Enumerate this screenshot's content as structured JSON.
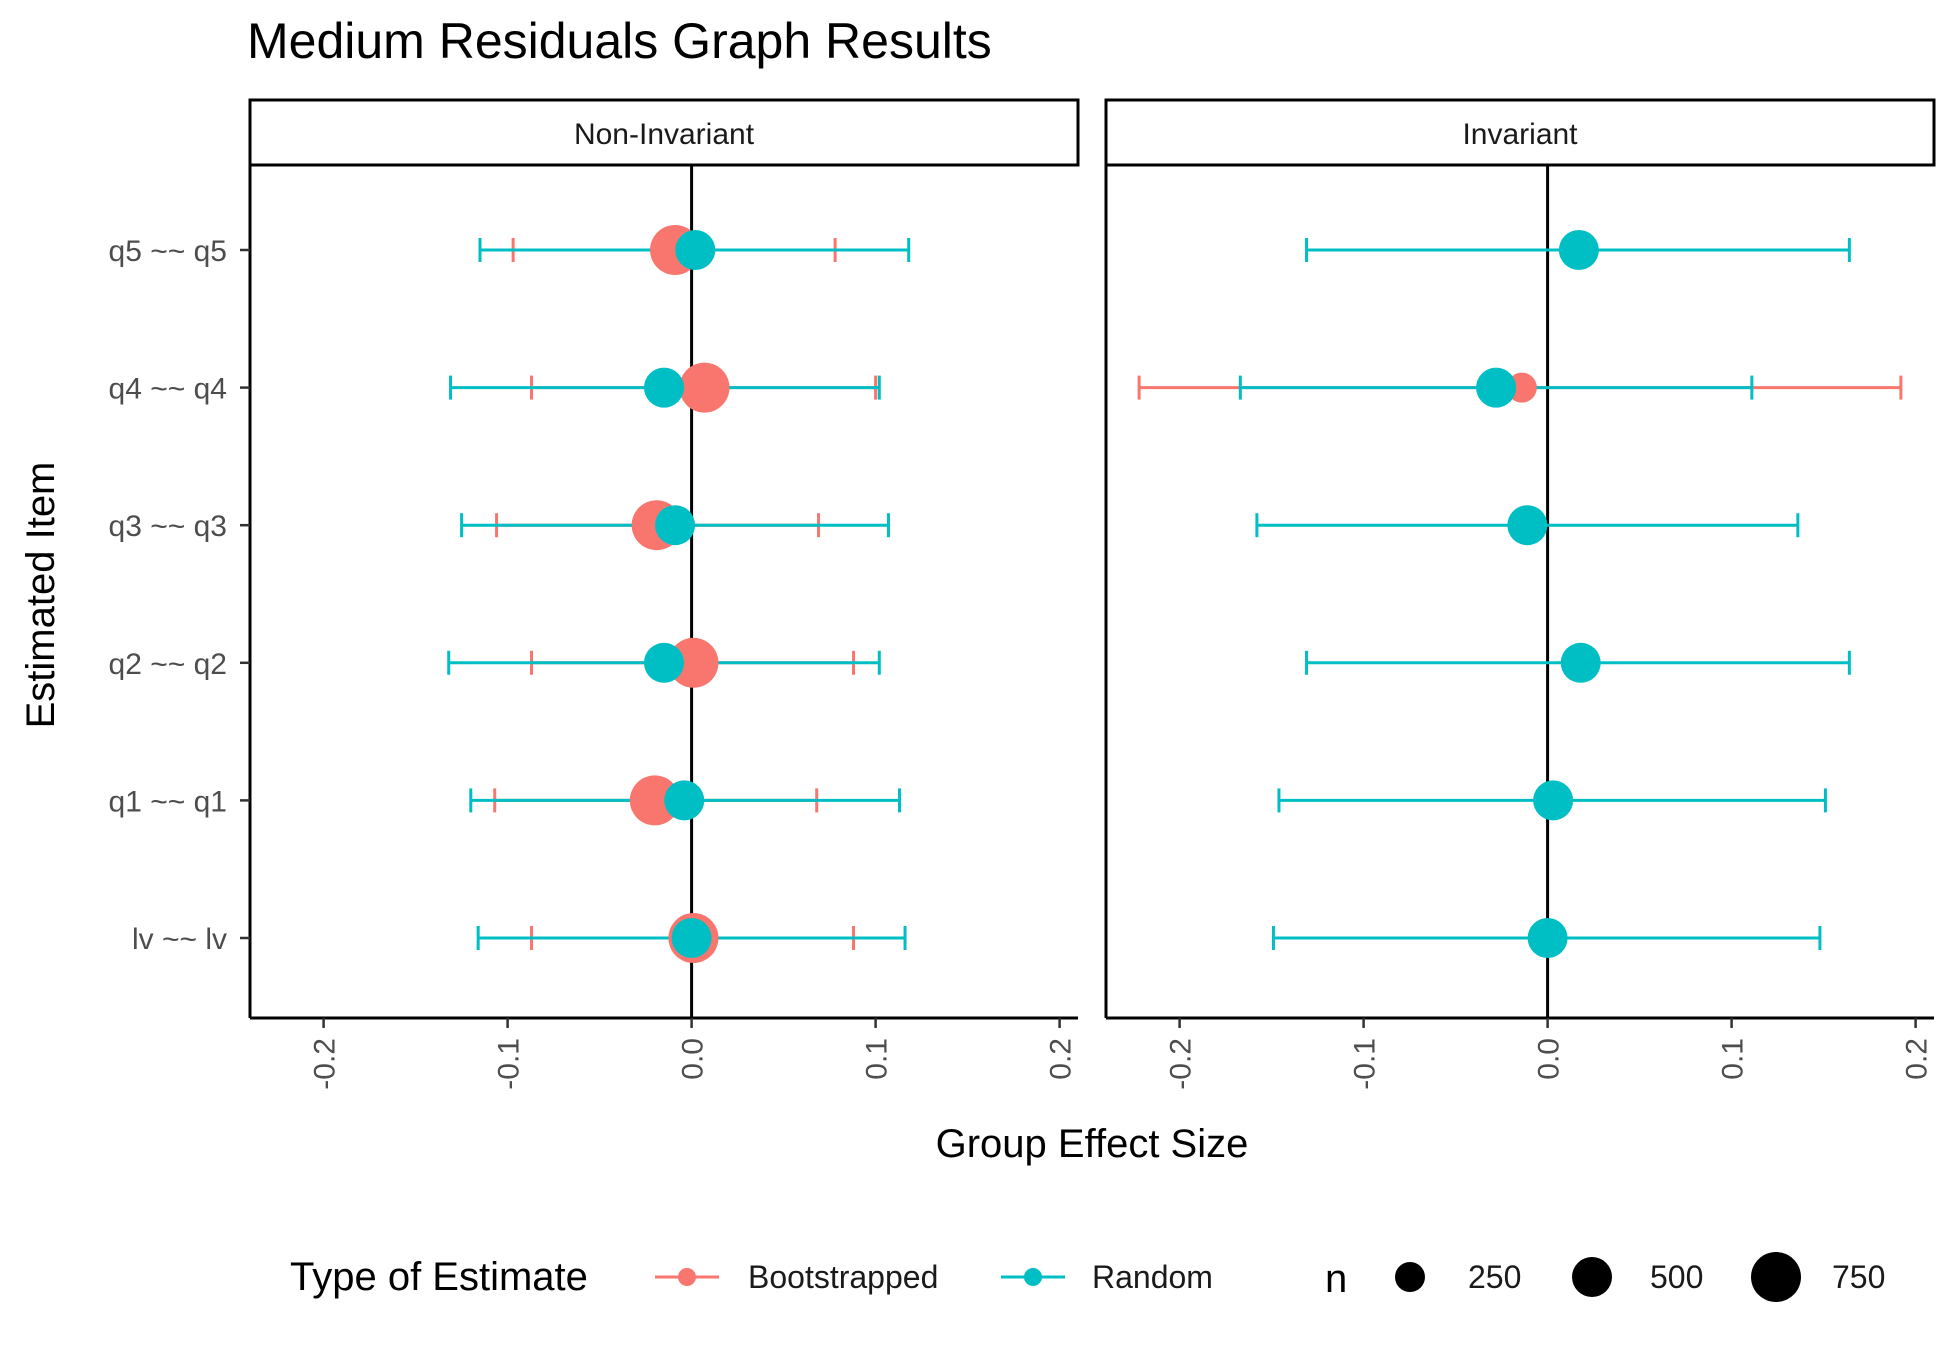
{
  "chart_data": {
    "type": "scatter",
    "title": "Medium Residuals Graph Results",
    "xlabel": "Group Effect Size",
    "ylabel": "Estimated Item",
    "xlim": [
      -0.24,
      0.21
    ],
    "x_ticks": [
      -0.2,
      -0.1,
      0.0,
      0.1,
      0.2
    ],
    "x_tick_labels": [
      "-0.2",
      "-0.1",
      "0.0",
      "0.1",
      "0.2"
    ],
    "reference_line_x": 0,
    "categories": [
      "q5 ~~ q5",
      "q4 ~~ q4",
      "q3 ~~ q3",
      "q2 ~~ q2",
      "q1 ~~ q1",
      "lv ~~ lv"
    ],
    "colors": {
      "Bootstrapped": "#F8766D",
      "Random": "#00BFC4"
    },
    "legend": {
      "color_title": "Type of Estimate",
      "color_items": [
        "Bootstrapped",
        "Random"
      ],
      "size_title": "n",
      "size_items": [
        {
          "label": "250",
          "n": 250
        },
        {
          "label": "500",
          "n": 500
        },
        {
          "label": "750",
          "n": 750
        }
      ],
      "position": "bottom"
    },
    "panels": [
      {
        "name": "Non-Invariant",
        "series": [
          {
            "name": "Bootstrapped",
            "points": [
              {
                "item": "q5 ~~ q5",
                "estimate": -0.009,
                "lower": -0.097,
                "upper": 0.078,
                "n": 750
              },
              {
                "item": "q4 ~~ q4",
                "estimate": 0.007,
                "lower": -0.087,
                "upper": 0.1,
                "n": 750
              },
              {
                "item": "q3 ~~ q3",
                "estimate": -0.019,
                "lower": -0.106,
                "upper": 0.069,
                "n": 750
              },
              {
                "item": "q2 ~~ q2",
                "estimate": 0.001,
                "lower": -0.087,
                "upper": 0.088,
                "n": 750
              },
              {
                "item": "q1 ~~ q1",
                "estimate": -0.02,
                "lower": -0.107,
                "upper": 0.068,
                "n": 750
              },
              {
                "item": "lv ~~ lv",
                "estimate": 0.001,
                "lower": -0.087,
                "upper": 0.088,
                "n": 750
              }
            ]
          },
          {
            "name": "Random",
            "points": [
              {
                "item": "q5 ~~ q5",
                "estimate": 0.002,
                "lower": -0.115,
                "upper": 0.118,
                "n": 500
              },
              {
                "item": "q4 ~~ q4",
                "estimate": -0.015,
                "lower": -0.131,
                "upper": 0.102,
                "n": 500
              },
              {
                "item": "q3 ~~ q3",
                "estimate": -0.009,
                "lower": -0.125,
                "upper": 0.107,
                "n": 500
              },
              {
                "item": "q2 ~~ q2",
                "estimate": -0.015,
                "lower": -0.132,
                "upper": 0.102,
                "n": 500
              },
              {
                "item": "q1 ~~ q1",
                "estimate": -0.004,
                "lower": -0.12,
                "upper": 0.113,
                "n": 500
              },
              {
                "item": "lv ~~ lv",
                "estimate": 0.0,
                "lower": -0.116,
                "upper": 0.116,
                "n": 500
              }
            ]
          }
        ]
      },
      {
        "name": "Invariant",
        "series": [
          {
            "name": "Bootstrapped",
            "points": [
              {
                "item": "q4 ~~ q4",
                "estimate": -0.014,
                "lower": -0.222,
                "upper": 0.192,
                "n": 250
              }
            ]
          },
          {
            "name": "Random",
            "points": [
              {
                "item": "q5 ~~ q5",
                "estimate": 0.017,
                "lower": -0.131,
                "upper": 0.164,
                "n": 500
              },
              {
                "item": "q4 ~~ q4",
                "estimate": -0.028,
                "lower": -0.167,
                "upper": 0.111,
                "n": 500
              },
              {
                "item": "q3 ~~ q3",
                "estimate": -0.011,
                "lower": -0.158,
                "upper": 0.136,
                "n": 500
              },
              {
                "item": "q2 ~~ q2",
                "estimate": 0.018,
                "lower": -0.131,
                "upper": 0.164,
                "n": 500
              },
              {
                "item": "q1 ~~ q1",
                "estimate": 0.003,
                "lower": -0.146,
                "upper": 0.151,
                "n": 500
              },
              {
                "item": "lv ~~ lv",
                "estimate": 0.0,
                "lower": -0.149,
                "upper": 0.148,
                "n": 500
              }
            ]
          }
        ]
      }
    ]
  }
}
